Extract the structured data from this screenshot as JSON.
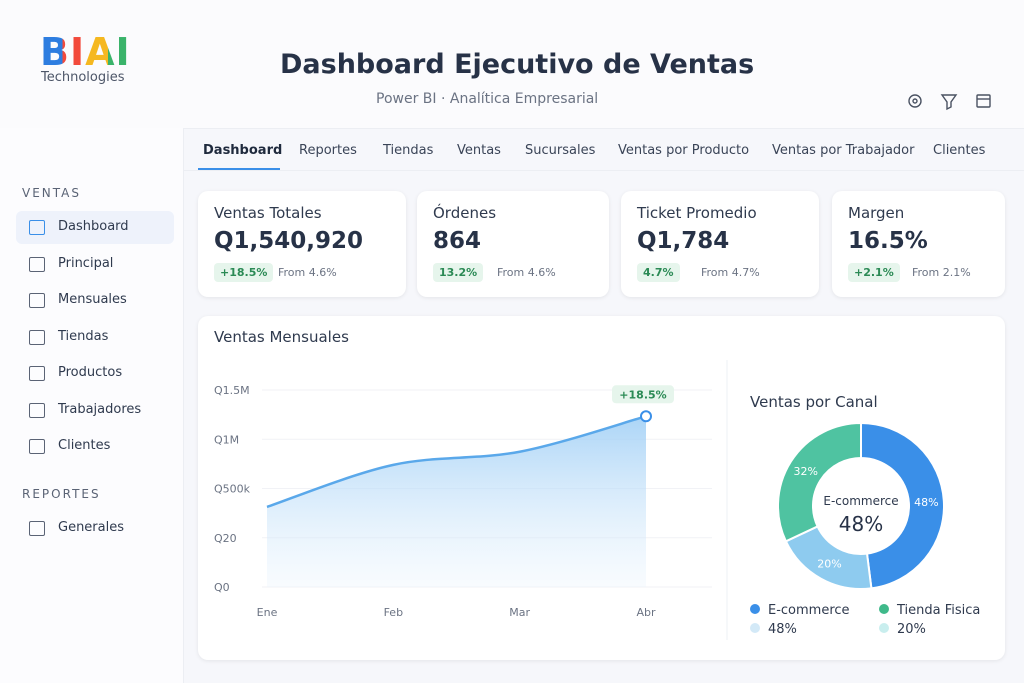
{
  "header": {
    "logo": "BIAI",
    "logo_sub": "Technologies",
    "title": "Dashboard Ejecutivo de Ventas",
    "subtitle": "Power BI · Analítica Empresarial"
  },
  "tabs": [
    "Dashboard",
    "Reportes",
    "Tiendas",
    "Ventas",
    "Sucursales",
    "Ventas por Producto",
    "Ventas por Trabajador",
    "Clientes"
  ],
  "sidebar": {
    "sections": [
      {
        "title": "VENTAS",
        "items": [
          "Dashboard",
          "Principal",
          "Mensuales",
          "Tiendas",
          "Productos",
          "Trabajadores",
          "Clientes"
        ]
      },
      {
        "title": "REPORTES",
        "items": [
          "Generales"
        ]
      }
    ]
  },
  "kpis": [
    {
      "title": "Ventas Totales",
      "value": "Q1,540,920",
      "delta": "+18.5%",
      "from": "From 4.6%"
    },
    {
      "title": "Órdenes",
      "value": "864",
      "delta": "13.2%",
      "from": "From 4.6%"
    },
    {
      "title": "Ticket Promedio",
      "value": "Q1,784",
      "delta": "4.7%",
      "from": "From 4.7%"
    },
    {
      "title": "Margen",
      "value": "16.5%",
      "delta": "+2.1%",
      "from": "From 2.1%"
    }
  ],
  "line_chart": {
    "type": "line",
    "title": "Ventas Mensuales",
    "categories": [
      "Ene",
      "Feb",
      "Mar",
      "Abr"
    ],
    "values": [
      610000,
      930000,
      1030000,
      1300000
    ],
    "color": "#5aa8ea",
    "ylim": [
      0,
      1500000
    ],
    "y_axis_labels": [
      "Q1.5M",
      "Q1M",
      "Q500k",
      "Q20",
      "Q0"
    ],
    "annotation": "+18.5%"
  },
  "donut_chart": {
    "type": "pie",
    "title": "Ventas por Canal",
    "values": [
      48,
      20,
      32
    ],
    "colors": [
      "#3a8fe8",
      "#8ecbef",
      "#4fc3a1"
    ],
    "center_label": "E-commerce",
    "center_value": "48%",
    "legend": [
      {
        "name": "E-commerce",
        "color": "#3a8fe8"
      },
      {
        "name": "Tienda Fisica",
        "color": "#3fb98a"
      },
      {
        "name": "48%",
        "color": "#d3e9f7"
      },
      {
        "name": "20%",
        "color": "#c9eeee"
      }
    ]
  }
}
